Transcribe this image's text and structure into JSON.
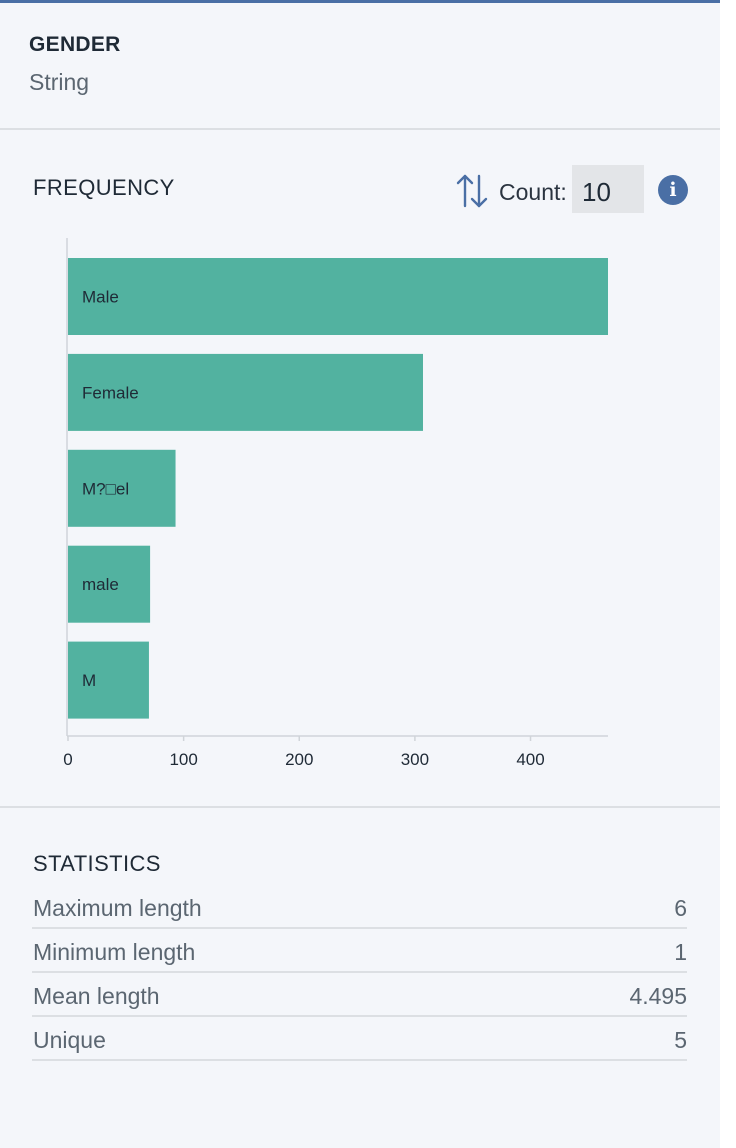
{
  "column": {
    "name": "GENDER",
    "type": "String"
  },
  "frequency": {
    "title": "FREQUENCY",
    "count_label": "Count:",
    "count_value": "10",
    "info_icon": "info-icon",
    "sort_icon": "sort-icon",
    "bar_color": "#52b2a0"
  },
  "chart_data": {
    "type": "bar",
    "orientation": "horizontal",
    "categories": [
      "Male",
      "Female",
      "M?□el",
      "male",
      "M"
    ],
    "values": [
      467,
      307,
      93,
      71,
      70
    ],
    "xticks": [
      0,
      100,
      200,
      300,
      400
    ],
    "xlim": [
      0,
      467
    ],
    "grid": false
  },
  "statistics": {
    "title": "STATISTICS",
    "rows": [
      {
        "label": "Maximum length",
        "value": "6"
      },
      {
        "label": "Minimum length",
        "value": "1"
      },
      {
        "label": "Mean length",
        "value": "4.495"
      },
      {
        "label": "Unique",
        "value": "5"
      }
    ]
  }
}
